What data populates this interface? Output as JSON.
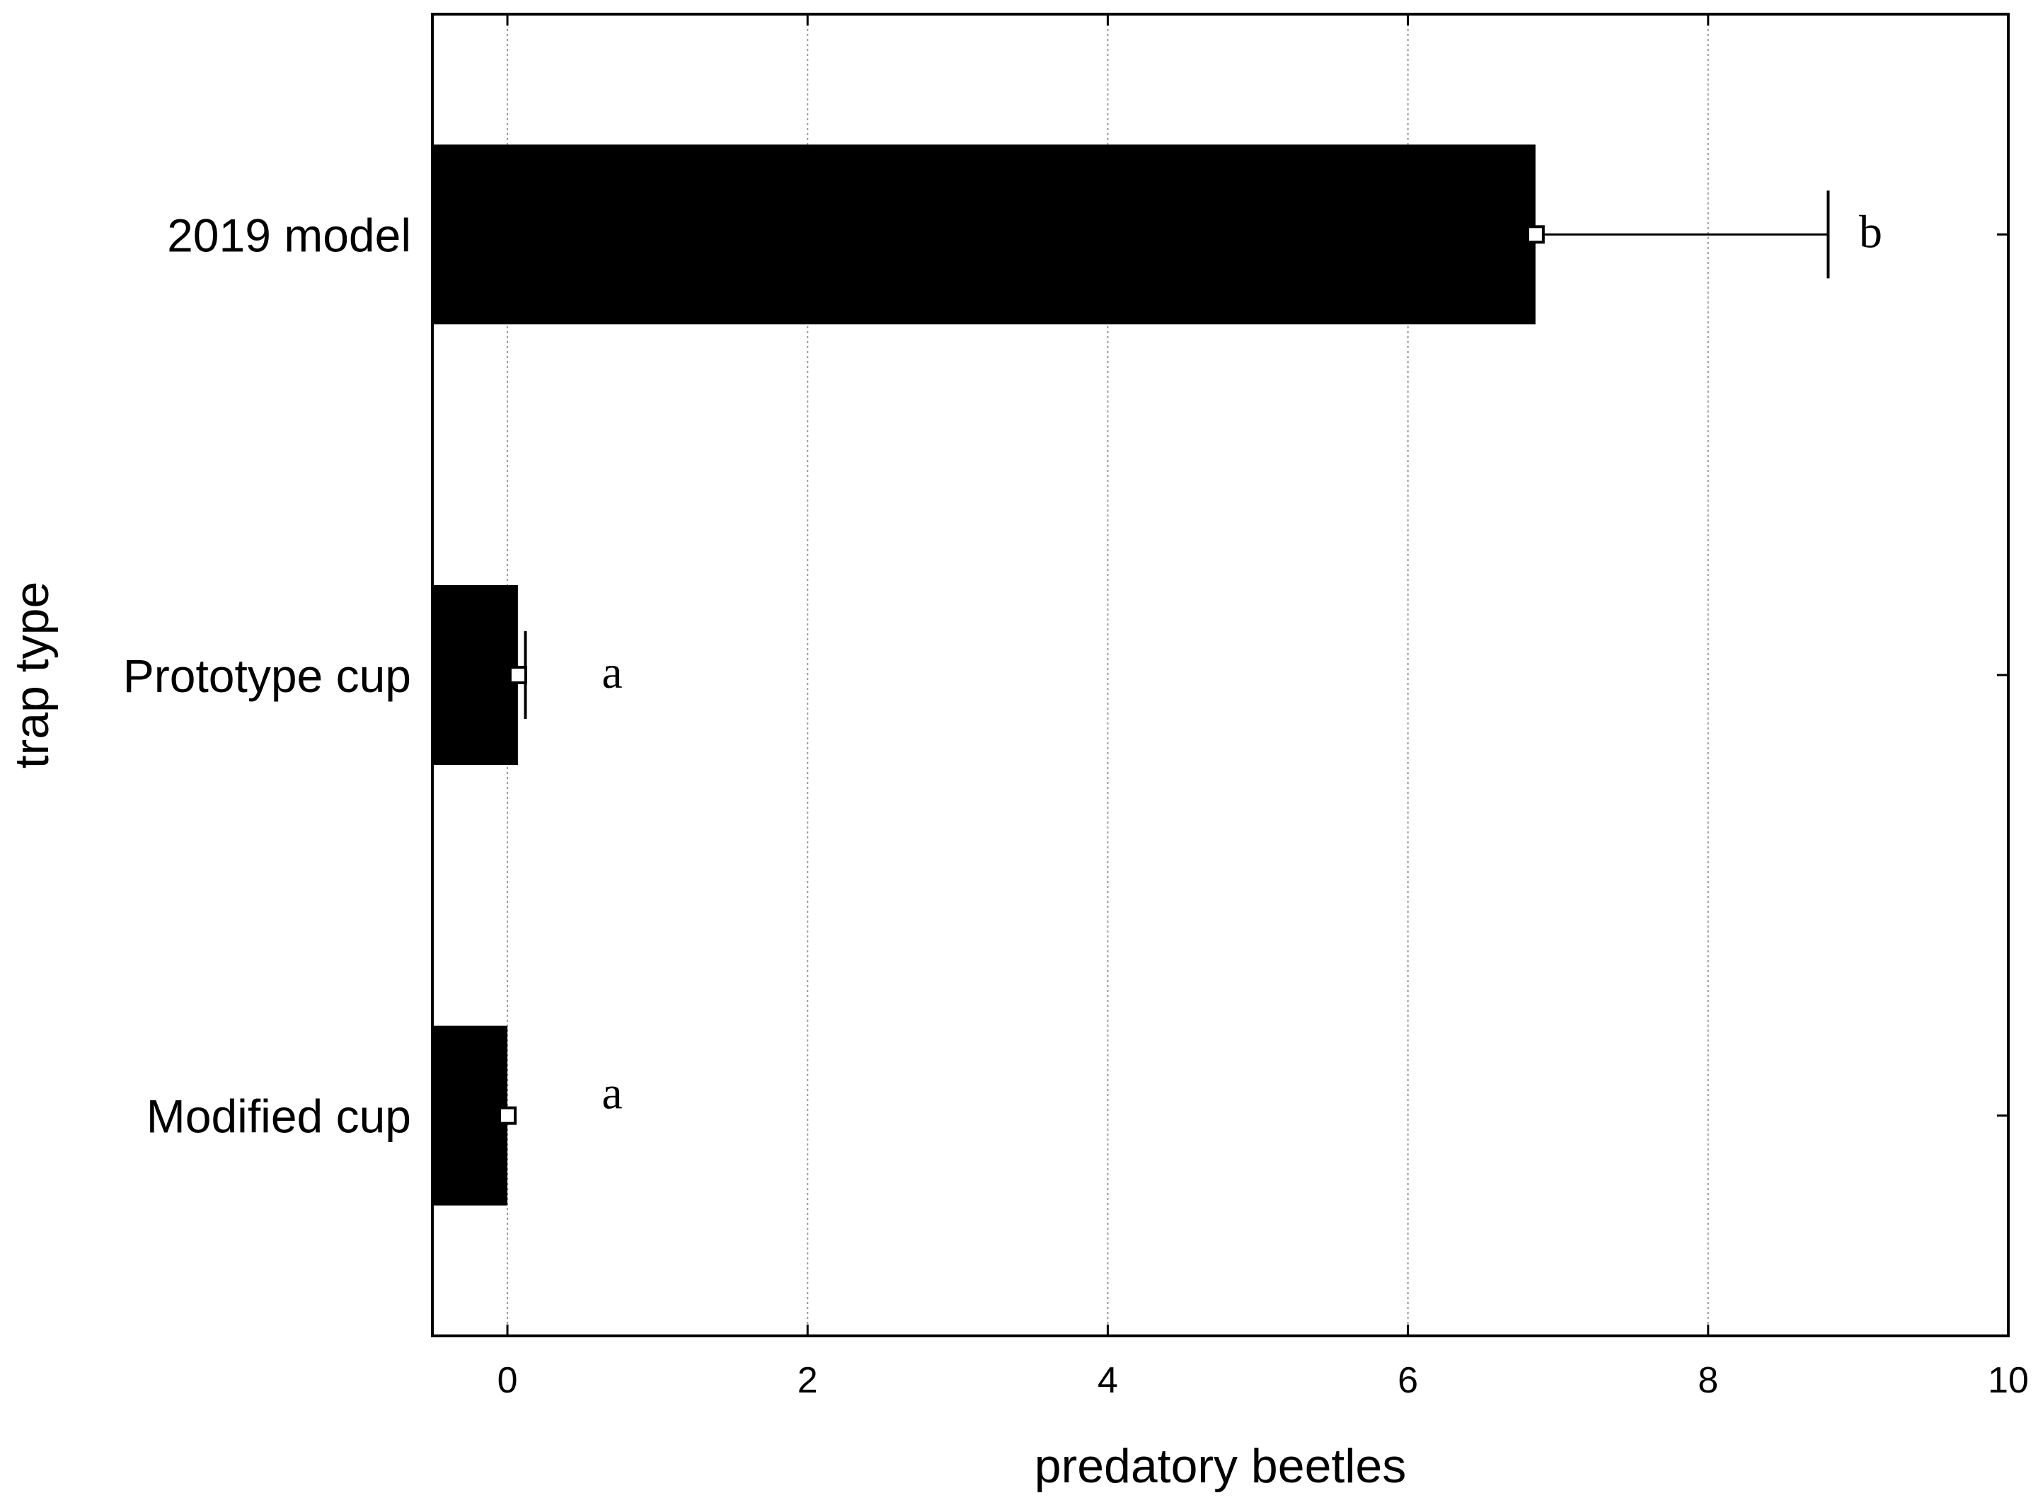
{
  "chart_data": {
    "type": "bar",
    "orientation": "horizontal",
    "categories": [
      "2019 model",
      "Prototype cup",
      "Modified cup"
    ],
    "values": [
      6.85,
      0.07,
      0.0
    ],
    "error_upper": [
      8.8,
      0.12,
      0.0
    ],
    "group_letters": [
      "b",
      "a",
      "a"
    ],
    "xlabel": "predatory beetles",
    "ylabel": "trap type",
    "xlim": [
      -0.5,
      10
    ],
    "xticks": [
      0,
      2,
      4,
      6,
      8,
      10
    ],
    "xtick_labels": [
      "0",
      "2",
      "4",
      "6",
      "8",
      "10"
    ],
    "grid": "vertical dotted",
    "bar_color": "#000000",
    "marker_color": "#ffffff"
  }
}
